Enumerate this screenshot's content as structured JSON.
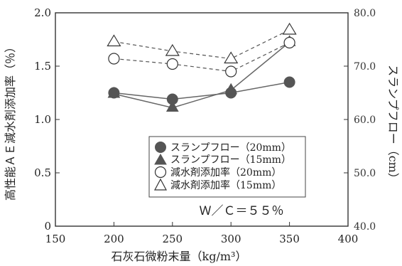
{
  "chart_data": {
    "type": "line",
    "x": [
      200,
      250,
      300,
      350
    ],
    "xlabel": "石灰石微粉末量（kg/m³）",
    "xlim": [
      150,
      400
    ],
    "xticks": [
      "150",
      "200",
      "250",
      "300",
      "350",
      "400"
    ],
    "y_left": {
      "label": "高性能ＡＥ減水剤添加率（％）",
      "ylim": [
        0,
        2.0
      ],
      "ticks": [
        "0",
        "0.5",
        "1.0",
        "1.5",
        "2.0"
      ]
    },
    "y_right": {
      "label": "スランプフロー（cm）",
      "ylim": [
        40.0,
        80.0
      ],
      "ticks": [
        "40.0",
        "50.0",
        "60.0",
        "70.0",
        "80.0"
      ]
    },
    "series": [
      {
        "name": "スランプフロー（20mm）",
        "axis": "right",
        "marker": "filled-circle",
        "line": "solid",
        "values": [
          65.0,
          63.8,
          65.0,
          67.0
        ]
      },
      {
        "name": "スランプフロー（15mm）",
        "axis": "right",
        "marker": "filled-triangle",
        "line": "solid",
        "values": [
          64.8,
          62.2,
          65.5,
          74.5
        ]
      },
      {
        "name": "減水剤添加率（20mm）",
        "axis": "left",
        "marker": "open-circle",
        "line": "dashed",
        "values": [
          1.57,
          1.52,
          1.45,
          1.72
        ]
      },
      {
        "name": "減水剤添加率（15mm）",
        "axis": "left",
        "marker": "open-triangle",
        "line": "dashed",
        "values": [
          1.73,
          1.64,
          1.57,
          1.84
        ]
      }
    ],
    "annotation": "Ｗ／Ｃ＝５５％",
    "grid": false,
    "legend_position": "bottom-right"
  }
}
